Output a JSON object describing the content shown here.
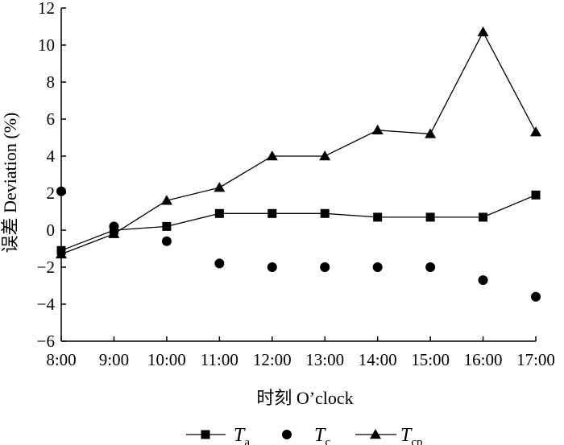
{
  "chart_data": {
    "type": "line",
    "categories": [
      "8:00",
      "9:00",
      "10:00",
      "11:00",
      "12:00",
      "13:00",
      "14:00",
      "15:00",
      "16:00",
      "17:00"
    ],
    "ylim": [
      -6,
      12
    ],
    "yticks": [
      -6,
      -4,
      -2,
      0,
      2,
      4,
      6,
      8,
      10,
      12
    ],
    "ytick_labels": [
      "−6",
      "−4",
      "−2",
      "0",
      "2",
      "4",
      "6",
      "8",
      "10",
      "12"
    ],
    "xlabel": "时刻 O’clock",
    "ylabel": "误差 Deviation (%)",
    "grid": false,
    "legend_position": "bottom",
    "series": [
      {
        "name": "Ta",
        "legend_main": "T",
        "legend_sub": "a",
        "marker": "square",
        "line": true,
        "color": "#000000",
        "values": [
          -1.1,
          0.0,
          0.2,
          0.9,
          0.9,
          0.9,
          0.7,
          0.7,
          0.7,
          1.9
        ]
      },
      {
        "name": "Tc",
        "legend_main": "T",
        "legend_sub": "c",
        "marker": "circle",
        "line": false,
        "color": "#000000",
        "values": [
          2.1,
          0.2,
          -0.6,
          -1.8,
          -2.0,
          -2.0,
          -2.0,
          -2.0,
          -2.7,
          -3.6
        ]
      },
      {
        "name": "Tcp",
        "legend_main": "T",
        "legend_sub": "cp",
        "marker": "triangle",
        "line": true,
        "color": "#000000",
        "values": [
          -1.3,
          -0.2,
          1.6,
          2.3,
          4.0,
          4.0,
          5.4,
          5.2,
          10.7,
          5.3
        ]
      }
    ]
  }
}
